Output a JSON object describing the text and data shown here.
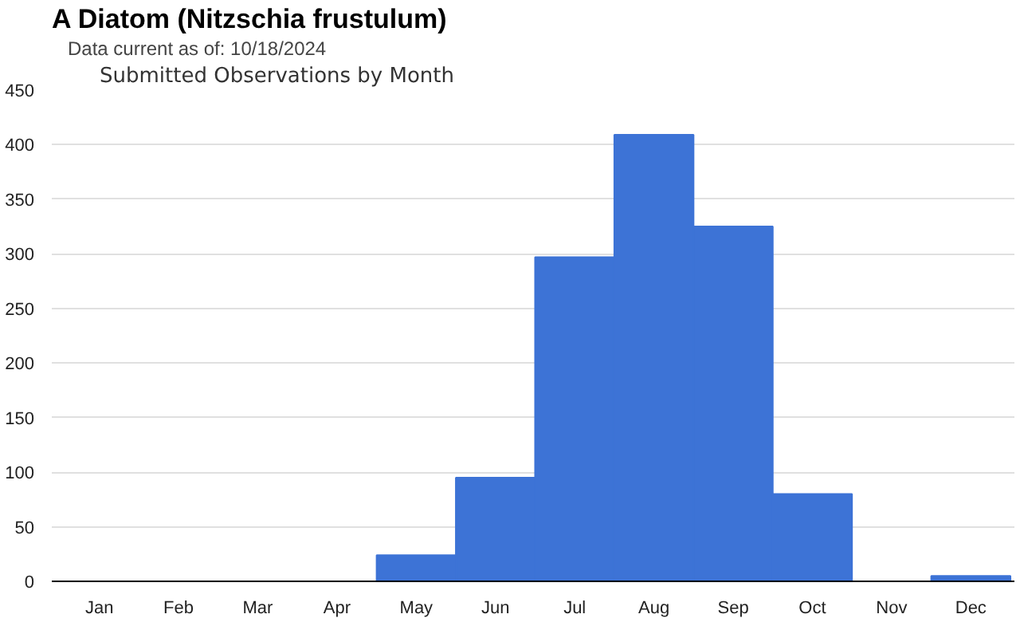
{
  "chart_data": {
    "type": "bar",
    "title": "A Diatom   (Nitzschia frustulum)",
    "subtitle": "Data current as of: 10/18/2024",
    "annotations": [
      "Submitted Observations by Month"
    ],
    "categories": [
      "Jan",
      "Feb",
      "Mar",
      "Apr",
      "May",
      "Jun",
      "Jul",
      "Aug",
      "Sep",
      "Oct",
      "Nov",
      "Dec"
    ],
    "values": [
      0,
      0,
      0,
      0,
      24,
      95,
      297,
      409,
      325,
      80,
      0,
      5
    ],
    "color": "#3d73d6",
    "ylim": [
      0,
      450
    ],
    "yticks": [
      0,
      50,
      100,
      150,
      200,
      250,
      300,
      350,
      400,
      450
    ],
    "grid": "y"
  }
}
